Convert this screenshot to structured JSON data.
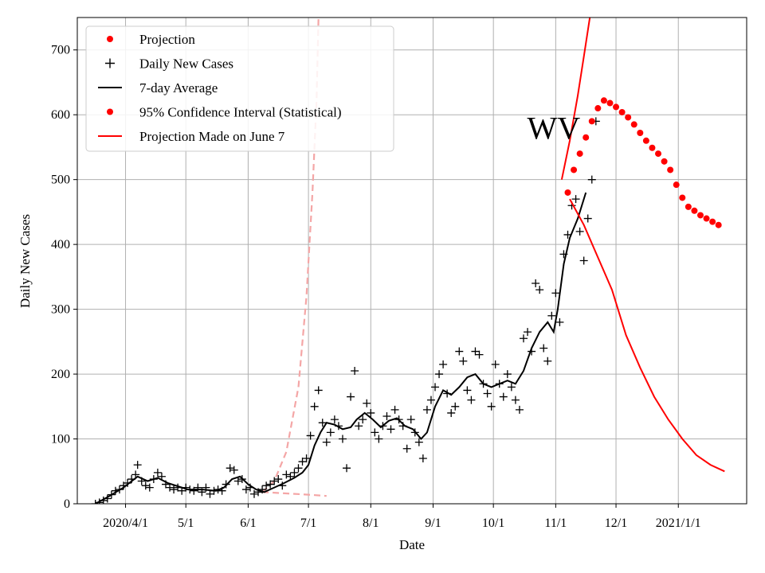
{
  "chart_data": {
    "type": "line",
    "title": "",
    "xlabel": "Date",
    "ylabel": "Daily New Cases",
    "xlim": [
      "2020-03-08",
      "2021-02-04"
    ],
    "ylim": [
      0,
      750
    ],
    "yticks": [
      0,
      100,
      200,
      300,
      400,
      500,
      600,
      700
    ],
    "xticks": [
      {
        "date": "2020-04-01",
        "label": "2020/4/1"
      },
      {
        "date": "2020-05-01",
        "label": "5/1"
      },
      {
        "date": "2020-06-01",
        "label": "6/1"
      },
      {
        "date": "2020-07-01",
        "label": "7/1"
      },
      {
        "date": "2020-08-01",
        "label": "8/1"
      },
      {
        "date": "2020-09-01",
        "label": "9/1"
      },
      {
        "date": "2020-10-01",
        "label": "10/1"
      },
      {
        "date": "2020-11-01",
        "label": "11/1"
      },
      {
        "date": "2020-12-01",
        "label": "12/1"
      },
      {
        "date": "2021-01-01",
        "label": "2021/1/1"
      }
    ],
    "grid": true,
    "legend_position": "top-left",
    "annotation": {
      "text": "WV",
      "x": "2020-10-31",
      "y": 580
    },
    "legend": [
      {
        "label": "Projection",
        "marker": "dot",
        "color": "#ff0000"
      },
      {
        "label": "Daily New Cases",
        "marker": "plus",
        "color": "#000000"
      },
      {
        "label": "7-day Average",
        "marker": "line",
        "color": "#000000"
      },
      {
        "label": "95% Confidence Interval (Statistical)",
        "marker": "dot",
        "color": "#ff0000"
      },
      {
        "label": "Projection Made on June 7",
        "marker": "line",
        "color": "#ff0000"
      }
    ],
    "series": [
      {
        "kind": "daily_cases",
        "color": "#000000",
        "points": [
          [
            "2020-03-17",
            0
          ],
          [
            "2020-03-19",
            2
          ],
          [
            "2020-03-21",
            5
          ],
          [
            "2020-03-23",
            8
          ],
          [
            "2020-03-25",
            14
          ],
          [
            "2020-03-27",
            20
          ],
          [
            "2020-03-29",
            22
          ],
          [
            "2020-03-31",
            28
          ],
          [
            "2020-04-02",
            32
          ],
          [
            "2020-04-04",
            38
          ],
          [
            "2020-04-06",
            45
          ],
          [
            "2020-04-07",
            60
          ],
          [
            "2020-04-09",
            35
          ],
          [
            "2020-04-11",
            28
          ],
          [
            "2020-04-13",
            25
          ],
          [
            "2020-04-15",
            38
          ],
          [
            "2020-04-17",
            48
          ],
          [
            "2020-04-19",
            42
          ],
          [
            "2020-04-21",
            30
          ],
          [
            "2020-04-23",
            25
          ],
          [
            "2020-04-25",
            22
          ],
          [
            "2020-04-27",
            25
          ],
          [
            "2020-04-29",
            20
          ],
          [
            "2020-05-01",
            25
          ],
          [
            "2020-05-03",
            22
          ],
          [
            "2020-05-05",
            20
          ],
          [
            "2020-05-07",
            25
          ],
          [
            "2020-05-09",
            18
          ],
          [
            "2020-05-11",
            25
          ],
          [
            "2020-05-13",
            15
          ],
          [
            "2020-05-15",
            20
          ],
          [
            "2020-05-17",
            22
          ],
          [
            "2020-05-19",
            20
          ],
          [
            "2020-05-21",
            30
          ],
          [
            "2020-05-23",
            55
          ],
          [
            "2020-05-25",
            52
          ],
          [
            "2020-05-27",
            35
          ],
          [
            "2020-05-29",
            38
          ],
          [
            "2020-05-31",
            22
          ],
          [
            "2020-06-02",
            25
          ],
          [
            "2020-06-04",
            15
          ],
          [
            "2020-06-06",
            18
          ],
          [
            "2020-06-08",
            22
          ],
          [
            "2020-06-10",
            28
          ],
          [
            "2020-06-12",
            30
          ],
          [
            "2020-06-14",
            35
          ],
          [
            "2020-06-16",
            38
          ],
          [
            "2020-06-18",
            28
          ],
          [
            "2020-06-20",
            45
          ],
          [
            "2020-06-22",
            42
          ],
          [
            "2020-06-24",
            48
          ],
          [
            "2020-06-26",
            55
          ],
          [
            "2020-06-28",
            65
          ],
          [
            "2020-06-30",
            70
          ],
          [
            "2020-07-02",
            105
          ],
          [
            "2020-07-04",
            150
          ],
          [
            "2020-07-06",
            175
          ],
          [
            "2020-07-08",
            125
          ],
          [
            "2020-07-10",
            95
          ],
          [
            "2020-07-12",
            110
          ],
          [
            "2020-07-14",
            130
          ],
          [
            "2020-07-16",
            120
          ],
          [
            "2020-07-18",
            100
          ],
          [
            "2020-07-20",
            55
          ],
          [
            "2020-07-22",
            165
          ],
          [
            "2020-07-24",
            205
          ],
          [
            "2020-07-26",
            120
          ],
          [
            "2020-07-28",
            130
          ],
          [
            "2020-07-30",
            155
          ],
          [
            "2020-08-01",
            140
          ],
          [
            "2020-08-03",
            110
          ],
          [
            "2020-08-05",
            100
          ],
          [
            "2020-08-07",
            120
          ],
          [
            "2020-08-09",
            135
          ],
          [
            "2020-08-11",
            115
          ],
          [
            "2020-08-13",
            145
          ],
          [
            "2020-08-15",
            130
          ],
          [
            "2020-08-17",
            120
          ],
          [
            "2020-08-19",
            85
          ],
          [
            "2020-08-21",
            130
          ],
          [
            "2020-08-23",
            110
          ],
          [
            "2020-08-25",
            95
          ],
          [
            "2020-08-27",
            70
          ],
          [
            "2020-08-29",
            145
          ],
          [
            "2020-08-31",
            160
          ],
          [
            "2020-09-02",
            180
          ],
          [
            "2020-09-04",
            200
          ],
          [
            "2020-09-06",
            215
          ],
          [
            "2020-09-08",
            170
          ],
          [
            "2020-09-10",
            140
          ],
          [
            "2020-09-12",
            150
          ],
          [
            "2020-09-14",
            235
          ],
          [
            "2020-09-16",
            220
          ],
          [
            "2020-09-18",
            175
          ],
          [
            "2020-09-20",
            160
          ],
          [
            "2020-09-22",
            235
          ],
          [
            "2020-09-24",
            230
          ],
          [
            "2020-09-26",
            185
          ],
          [
            "2020-09-28",
            170
          ],
          [
            "2020-09-30",
            150
          ],
          [
            "2020-10-02",
            215
          ],
          [
            "2020-10-04",
            185
          ],
          [
            "2020-10-06",
            165
          ],
          [
            "2020-10-08",
            200
          ],
          [
            "2020-10-10",
            180
          ],
          [
            "2020-10-12",
            160
          ],
          [
            "2020-10-14",
            145
          ],
          [
            "2020-10-16",
            255
          ],
          [
            "2020-10-18",
            265
          ],
          [
            "2020-10-20",
            235
          ],
          [
            "2020-10-22",
            340
          ],
          [
            "2020-10-24",
            330
          ],
          [
            "2020-10-26",
            240
          ],
          [
            "2020-10-28",
            220
          ],
          [
            "2020-10-30",
            290
          ],
          [
            "2020-11-01",
            325
          ],
          [
            "2020-11-03",
            280
          ],
          [
            "2020-11-05",
            385
          ],
          [
            "2020-11-07",
            415
          ],
          [
            "2020-11-09",
            460
          ],
          [
            "2020-11-11",
            470
          ],
          [
            "2020-11-13",
            420
          ],
          [
            "2020-11-15",
            375
          ],
          [
            "2020-11-17",
            440
          ],
          [
            "2020-11-19",
            500
          ],
          [
            "2020-11-21",
            590
          ]
        ]
      },
      {
        "kind": "avg7",
        "color": "#000000",
        "points": [
          [
            "2020-03-17",
            0
          ],
          [
            "2020-03-24",
            12
          ],
          [
            "2020-03-31",
            25
          ],
          [
            "2020-04-07",
            42
          ],
          [
            "2020-04-12",
            35
          ],
          [
            "2020-04-17",
            40
          ],
          [
            "2020-04-22",
            32
          ],
          [
            "2020-04-27",
            27
          ],
          [
            "2020-05-02",
            22
          ],
          [
            "2020-05-09",
            22
          ],
          [
            "2020-05-16",
            20
          ],
          [
            "2020-05-20",
            25
          ],
          [
            "2020-05-24",
            38
          ],
          [
            "2020-05-28",
            42
          ],
          [
            "2020-06-01",
            30
          ],
          [
            "2020-06-05",
            22
          ],
          [
            "2020-06-09",
            18
          ],
          [
            "2020-06-14",
            25
          ],
          [
            "2020-06-19",
            32
          ],
          [
            "2020-06-24",
            40
          ],
          [
            "2020-06-28",
            48
          ],
          [
            "2020-07-01",
            60
          ],
          [
            "2020-07-04",
            90
          ],
          [
            "2020-07-07",
            110
          ],
          [
            "2020-07-10",
            125
          ],
          [
            "2020-07-14",
            122
          ],
          [
            "2020-07-18",
            115
          ],
          [
            "2020-07-22",
            118
          ],
          [
            "2020-07-25",
            130
          ],
          [
            "2020-07-29",
            140
          ],
          [
            "2020-08-02",
            130
          ],
          [
            "2020-08-06",
            118
          ],
          [
            "2020-08-10",
            128
          ],
          [
            "2020-08-14",
            132
          ],
          [
            "2020-08-18",
            120
          ],
          [
            "2020-08-22",
            115
          ],
          [
            "2020-08-26",
            100
          ],
          [
            "2020-08-29",
            110
          ],
          [
            "2020-09-02",
            150
          ],
          [
            "2020-09-06",
            175
          ],
          [
            "2020-09-10",
            168
          ],
          [
            "2020-09-14",
            180
          ],
          [
            "2020-09-18",
            195
          ],
          [
            "2020-09-22",
            200
          ],
          [
            "2020-09-26",
            185
          ],
          [
            "2020-09-30",
            180
          ],
          [
            "2020-10-04",
            185
          ],
          [
            "2020-10-08",
            190
          ],
          [
            "2020-10-12",
            185
          ],
          [
            "2020-10-16",
            205
          ],
          [
            "2020-10-20",
            240
          ],
          [
            "2020-10-24",
            265
          ],
          [
            "2020-10-28",
            280
          ],
          [
            "2020-10-31",
            265
          ],
          [
            "2020-11-02",
            300
          ],
          [
            "2020-11-05",
            370
          ],
          [
            "2020-11-08",
            410
          ],
          [
            "2020-11-12",
            440
          ],
          [
            "2020-11-16",
            480
          ]
        ]
      },
      {
        "kind": "projection_june7",
        "color": "#ff0000",
        "points": [
          [
            "2020-11-08",
            470
          ],
          [
            "2020-11-15",
            430
          ],
          [
            "2020-11-22",
            380
          ],
          [
            "2020-11-29",
            330
          ],
          [
            "2020-12-06",
            260
          ],
          [
            "2020-12-13",
            210
          ],
          [
            "2020-12-20",
            165
          ],
          [
            "2020-12-27",
            130
          ],
          [
            "2021-01-03",
            100
          ],
          [
            "2021-01-10",
            75
          ],
          [
            "2021-01-17",
            60
          ],
          [
            "2021-01-24",
            50
          ]
        ]
      },
      {
        "kind": "projection_steep",
        "color": "#ff0000",
        "points": [
          [
            "2020-11-04",
            500
          ],
          [
            "2020-11-08",
            560
          ],
          [
            "2020-11-12",
            630
          ],
          [
            "2020-11-15",
            690
          ],
          [
            "2020-11-18",
            750
          ]
        ]
      },
      {
        "kind": "projection_dots",
        "color": "#ff0000",
        "points": [
          [
            "2020-11-07",
            480
          ],
          [
            "2020-11-10",
            515
          ],
          [
            "2020-11-13",
            540
          ],
          [
            "2020-11-16",
            565
          ],
          [
            "2020-11-19",
            590
          ],
          [
            "2020-11-22",
            610
          ],
          [
            "2020-11-25",
            622
          ],
          [
            "2020-11-28",
            618
          ],
          [
            "2020-12-01",
            612
          ],
          [
            "2020-12-04",
            604
          ],
          [
            "2020-12-07",
            596
          ],
          [
            "2020-12-10",
            585
          ],
          [
            "2020-12-13",
            572
          ],
          [
            "2020-12-16",
            560
          ],
          [
            "2020-12-19",
            549
          ],
          [
            "2020-12-22",
            540
          ],
          [
            "2020-12-25",
            528
          ],
          [
            "2020-12-28",
            515
          ],
          [
            "2020-12-31",
            492
          ],
          [
            "2021-01-03",
            472
          ],
          [
            "2021-01-06",
            458
          ],
          [
            "2021-01-09",
            452
          ],
          [
            "2021-01-12",
            445
          ],
          [
            "2021-01-15",
            440
          ],
          [
            "2021-01-18",
            435
          ],
          [
            "2021-01-21",
            430
          ]
        ]
      },
      {
        "kind": "ci_upper",
        "color": "#f4a6a6",
        "points": [
          [
            "2020-06-08",
            18
          ],
          [
            "2020-06-14",
            35
          ],
          [
            "2020-06-20",
            80
          ],
          [
            "2020-06-26",
            180
          ],
          [
            "2020-06-30",
            320
          ],
          [
            "2020-07-03",
            480
          ],
          [
            "2020-07-05",
            620
          ],
          [
            "2020-07-06",
            750
          ]
        ]
      },
      {
        "kind": "ci_lower",
        "color": "#f4a6a6",
        "points": [
          [
            "2020-06-08",
            18
          ],
          [
            "2020-06-20",
            16
          ],
          [
            "2020-07-01",
            14
          ],
          [
            "2020-07-10",
            12
          ]
        ]
      }
    ]
  }
}
